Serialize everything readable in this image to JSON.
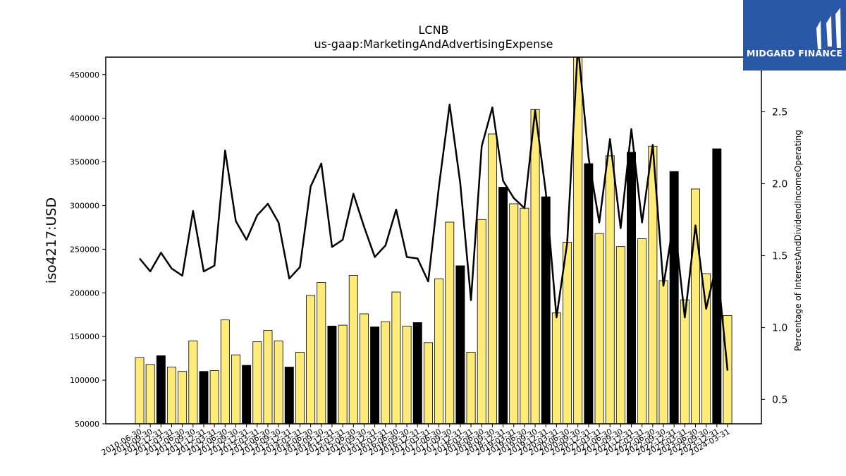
{
  "logo": {
    "text": "MIDGARD FINANCE",
    "icon": "midgard-logo-icon",
    "background": "#2b57a8"
  },
  "chart_data": {
    "type": "bar",
    "title": "LCNB",
    "subtitle": "us-gaap:MarketingAndAdvertisingExpense",
    "ylabel": "iso4217:USD",
    "y2label": "Percentage of InterestAndDividendIncomeOperating",
    "ylim": [
      50000,
      470000
    ],
    "y2lim": [
      0.33,
      2.88
    ],
    "yticks": [
      50000,
      100000,
      150000,
      200000,
      250000,
      300000,
      350000,
      400000,
      450000
    ],
    "y2ticks": [
      0.5,
      1.0,
      1.5,
      2.0,
      2.5
    ],
    "grid": false,
    "colors": {
      "bar_default": "#ffeb7a",
      "bar_highlight": "#000000",
      "line": "#000000"
    },
    "categories": [
      "2010-06-30",
      "2010-09-30",
      "2010-12-31",
      "2011-03-31",
      "2011-06-30",
      "2011-09-30",
      "2011-12-31",
      "2012-03-31",
      "2012-06-30",
      "2012-09-30",
      "2012-12-31",
      "2013-03-31",
      "2013-06-30",
      "2013-09-30",
      "2013-12-31",
      "2014-03-31",
      "2014-06-30",
      "2014-09-30",
      "2014-12-31",
      "2015-03-31",
      "2015-06-30",
      "2015-09-30",
      "2015-12-31",
      "2016-03-31",
      "2016-06-30",
      "2016-09-30",
      "2016-12-31",
      "2017-03-31",
      "2017-06-30",
      "2017-09-30",
      "2017-12-31",
      "2018-03-31",
      "2018-06-30",
      "2018-09-30",
      "2018-12-31",
      "2019-03-31",
      "2019-06-30",
      "2019-09-30",
      "2019-12-31",
      "2020-03-31",
      "2020-06-30",
      "2020-09-30",
      "2020-12-31",
      "2021-03-31",
      "2021-06-30",
      "2021-09-30",
      "2021-12-31",
      "2022-03-31",
      "2022-06-30",
      "2022-09-30",
      "2022-12-31",
      "2023-03-31",
      "2023-06-30",
      "2023-09-30",
      "2023-12-31",
      "2024-03-31"
    ],
    "series": [
      {
        "type": "bar",
        "axis": "left",
        "values": [
          126000,
          118000,
          128000,
          115000,
          110000,
          145000,
          110000,
          111000,
          169000,
          129000,
          117000,
          144000,
          157000,
          145000,
          115000,
          132000,
          197000,
          212000,
          162000,
          163000,
          220000,
          176000,
          161000,
          167000,
          201000,
          162000,
          166000,
          143000,
          216000,
          281000,
          231000,
          132000,
          284000,
          382000,
          321000,
          302000,
          297000,
          410000,
          310000,
          177000,
          258000,
          470000,
          348000,
          268000,
          357000,
          253000,
          361000,
          262000,
          368000,
          214000,
          339000,
          192000,
          319000,
          222000,
          365000,
          174000
        ],
        "highlight": [
          false,
          false,
          true,
          false,
          false,
          false,
          true,
          false,
          false,
          false,
          true,
          false,
          false,
          false,
          true,
          false,
          false,
          false,
          true,
          false,
          false,
          false,
          true,
          false,
          false,
          false,
          true,
          false,
          false,
          false,
          true,
          false,
          false,
          false,
          true,
          false,
          false,
          false,
          true,
          false,
          false,
          false,
          true,
          false,
          false,
          false,
          true,
          false,
          false,
          false,
          true,
          false,
          false,
          false,
          true,
          false
        ]
      },
      {
        "type": "line",
        "axis": "right",
        "values": [
          1.48,
          1.39,
          1.52,
          1.41,
          1.36,
          1.81,
          1.39,
          1.43,
          2.23,
          1.74,
          1.61,
          1.78,
          1.86,
          1.73,
          1.34,
          1.42,
          1.98,
          2.14,
          1.56,
          1.61,
          1.93,
          1.7,
          1.49,
          1.57,
          1.82,
          1.49,
          1.48,
          1.32,
          1.98,
          2.55,
          2.0,
          1.19,
          2.26,
          2.53,
          2.02,
          1.9,
          1.83,
          2.51,
          1.94,
          1.07,
          1.59,
          2.96,
          2.18,
          1.73,
          2.31,
          1.69,
          2.38,
          1.73,
          2.27,
          1.29,
          1.76,
          1.07,
          1.71,
          1.13,
          1.45,
          0.7
        ]
      }
    ]
  }
}
